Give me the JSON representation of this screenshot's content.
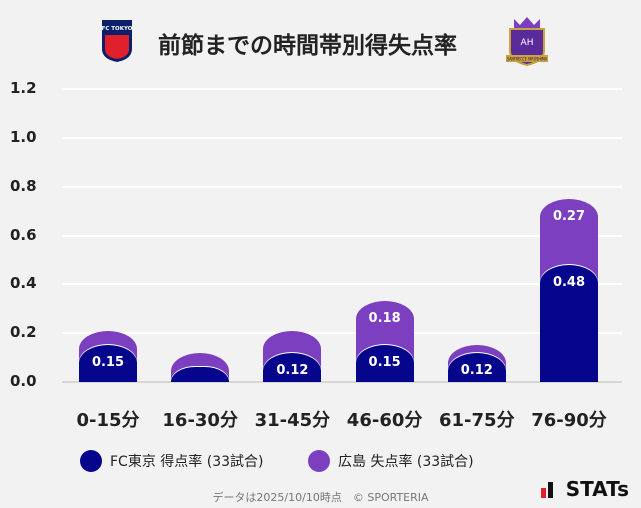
{
  "header": {
    "title": "前節までの時間帯別得失点率",
    "home_logo_text": "FC TOKYO",
    "away_logo_text": "SANFRECCE HIROSHIMA"
  },
  "chart_data": {
    "type": "bar",
    "stacked": true,
    "categories": [
      "0-15分",
      "16-30分",
      "31-45分",
      "46-60分",
      "61-75分",
      "76-90分"
    ],
    "series": [
      {
        "name": "FC東京 得点率 (33試合)",
        "color": "#06068c",
        "values": [
          0.15,
          0.06,
          0.12,
          0.15,
          0.12,
          0.48
        ],
        "labels": [
          "0.15",
          "",
          "0.12",
          "0.15",
          "0.12",
          "0.48"
        ]
      },
      {
        "name": "広島 失点率 (33試合)",
        "color": "#7b3fbf",
        "values": [
          0.06,
          0.06,
          0.09,
          0.18,
          0.03,
          0.27
        ],
        "labels": [
          "",
          "",
          "",
          "0.18",
          "",
          "0.27"
        ]
      }
    ],
    "ylim": [
      0,
      1.2
    ],
    "yticks": [
      "0.0",
      "0.2",
      "0.4",
      "0.6",
      "0.8",
      "1.0",
      "1.2"
    ],
    "grid": true,
    "legend": "bottom"
  },
  "footer": {
    "source": "データは2025/10/10時点　© SPORTERIA",
    "brand": "STATs"
  }
}
